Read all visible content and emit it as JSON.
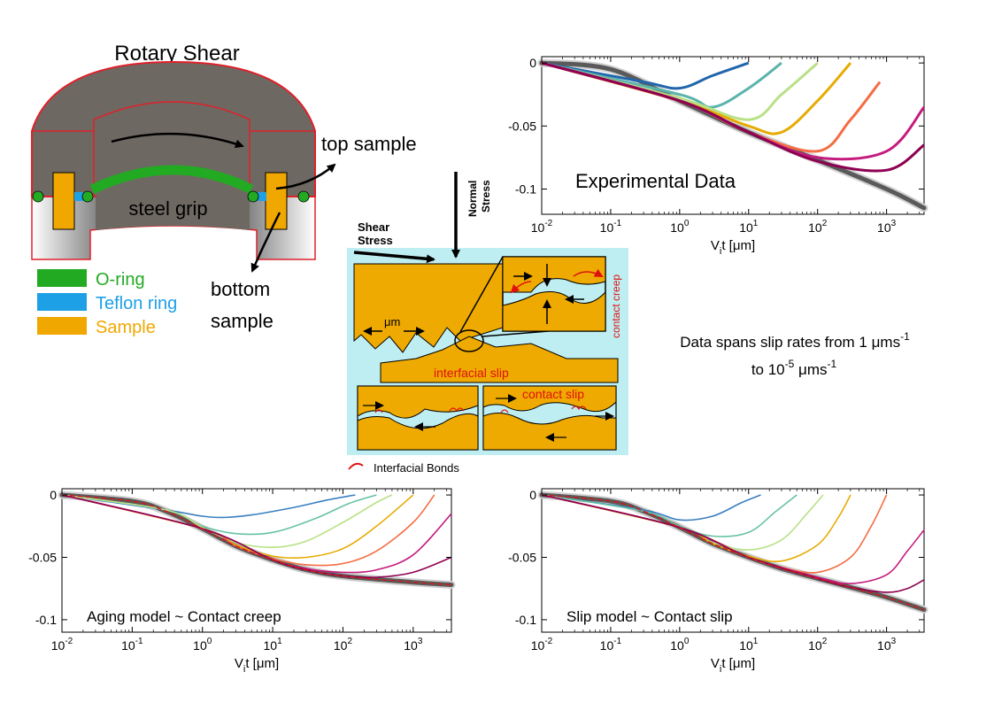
{
  "apparatus": {
    "title": "Rotary Shear",
    "center_label": "steel grip",
    "top_label": "top sample",
    "bottom_label_1": "bottom",
    "bottom_label_2": "sample",
    "legend": [
      {
        "label": "O-ring",
        "color": "#22aa22"
      },
      {
        "label": "Teflon ring",
        "color": "#1ea0e6"
      },
      {
        "label": "Sample",
        "color": "#f0a800"
      }
    ],
    "colors": {
      "body": "#6e6862",
      "outline": "#e0202a",
      "base": "#d9d9d9"
    }
  },
  "contact_diagram": {
    "normal_stress_1": "Normal",
    "normal_stress_2": "Stress",
    "shear_stress_1": "Shear",
    "shear_stress_2": "Stress",
    "scale_label": "μm",
    "contact_creep": "contact creep",
    "interfacial_slip": "interfacial slip",
    "contact_slip": "contact slip",
    "bonds_legend": "Interfacial Bonds",
    "colors": {
      "background": "#bfeef2",
      "sample": "#eeaa00",
      "annotation": "#e01010"
    }
  },
  "note": {
    "line1_prefix": "Data spans slip rates from 1 ",
    "line1_unit": "μms",
    "line1_exp": "-1",
    "line2_prefix": "to 10",
    "line2_exp": "-5",
    "line2_unit": " μms",
    "line2_exp2": "-1"
  },
  "chart_data": [
    {
      "id": "experimental",
      "type": "line",
      "annotation": "Experimental Data",
      "xlabel_base": "V",
      "xlabel_sub": "i",
      "xlabel_rest": "t [μm]",
      "ylabel": "",
      "xscale": "log",
      "xlim": [
        0.01,
        3500
      ],
      "ylim": [
        -0.12,
        0.005
      ],
      "xticks": [
        {
          "base": "10",
          "exp": "-2",
          "value": 0.01
        },
        {
          "base": "10",
          "exp": "-1",
          "value": 0.1
        },
        {
          "base": "10",
          "exp": "0",
          "value": 1
        },
        {
          "base": "10",
          "exp": "1",
          "value": 10
        },
        {
          "base": "10",
          "exp": "2",
          "value": 100
        },
        {
          "base": "10",
          "exp": "3",
          "value": 1000
        }
      ],
      "yticks": [
        {
          "label": "0",
          "value": 0
        },
        {
          "label": "-0.05",
          "value": -0.05
        },
        {
          "label": "-0.1",
          "value": -0.1
        }
      ],
      "envelope": {
        "x": [
          0.01,
          0.1,
          1,
          10,
          100,
          1000,
          3500
        ],
        "y": [
          0,
          -0.005,
          -0.03,
          -0.055,
          -0.077,
          -0.1,
          -0.115
        ],
        "color": "#5a5a5a"
      },
      "series": [
        {
          "color": "#2166ac",
          "x": [
            0.01,
            0.3,
            1,
            3,
            10
          ],
          "y": [
            0,
            -0.015,
            -0.02,
            -0.01,
            0
          ]
        },
        {
          "color": "#5ab4ac",
          "x": [
            0.01,
            1,
            3,
            10,
            30
          ],
          "y": [
            0,
            -0.025,
            -0.035,
            -0.02,
            0
          ]
        },
        {
          "color": "#b8e186",
          "x": [
            0.01,
            1,
            10,
            30,
            100
          ],
          "y": [
            0,
            -0.028,
            -0.045,
            -0.025,
            0
          ]
        },
        {
          "color": "#e6ab02",
          "x": [
            0.01,
            1,
            10,
            30,
            100,
            300
          ],
          "y": [
            0,
            -0.03,
            -0.05,
            -0.055,
            -0.03,
            0
          ]
        },
        {
          "color": "#f46d43",
          "x": [
            0.01,
            1,
            10,
            100,
            300,
            800
          ],
          "y": [
            0,
            -0.03,
            -0.055,
            -0.07,
            -0.045,
            -0.015
          ]
        },
        {
          "color": "#c51b7d",
          "x": [
            0.01,
            1,
            10,
            100,
            1000,
            3500
          ],
          "y": [
            0,
            -0.03,
            -0.055,
            -0.075,
            -0.07,
            -0.035
          ]
        },
        {
          "color": "#8e0152",
          "x": [
            0.01,
            1,
            10,
            100,
            1000,
            3500
          ],
          "y": [
            0,
            -0.03,
            -0.055,
            -0.078,
            -0.085,
            -0.065
          ]
        }
      ]
    },
    {
      "id": "aging",
      "type": "line",
      "annotation": "Aging model ~ Contact creep",
      "xlabel_base": "V",
      "xlabel_sub": "i",
      "xlabel_rest": "t [μm]",
      "ylabel": "",
      "xscale": "log",
      "xlim": [
        0.01,
        3500
      ],
      "ylim": [
        -0.11,
        0.005
      ],
      "xticks": [
        {
          "base": "10",
          "exp": "-2",
          "value": 0.01
        },
        {
          "base": "10",
          "exp": "-1",
          "value": 0.1
        },
        {
          "base": "10",
          "exp": "0",
          "value": 1
        },
        {
          "base": "10",
          "exp": "1",
          "value": 10
        },
        {
          "base": "10",
          "exp": "2",
          "value": 100
        },
        {
          "base": "10",
          "exp": "3",
          "value": 1000
        }
      ],
      "yticks": [
        {
          "label": "0",
          "value": 0
        },
        {
          "label": "-0.05",
          "value": -0.05
        },
        {
          "label": "-0.1",
          "value": -0.1
        }
      ],
      "envelope": {
        "x": [
          0.01,
          0.1,
          0.3,
          1,
          3,
          10,
          30,
          100,
          1000,
          3500
        ],
        "y": [
          0,
          -0.005,
          -0.013,
          -0.027,
          -0.041,
          -0.052,
          -0.06,
          -0.065,
          -0.07,
          -0.072
        ],
        "color": "#5a5a5a"
      },
      "series": [
        {
          "color": "#3a7fc1",
          "x": [
            0.01,
            0.3,
            1,
            2,
            5,
            20,
            60,
            150
          ],
          "y": [
            0,
            -0.012,
            -0.017,
            -0.018,
            -0.016,
            -0.01,
            -0.004,
            0
          ]
        },
        {
          "color": "#66c2a5",
          "x": [
            0.01,
            0.3,
            1,
            3,
            10,
            40,
            120,
            300
          ],
          "y": [
            0,
            -0.012,
            -0.025,
            -0.031,
            -0.03,
            -0.019,
            -0.007,
            0
          ]
        },
        {
          "color": "#b8e186",
          "x": [
            0.01,
            0.3,
            1,
            3,
            10,
            30,
            100,
            300,
            500
          ],
          "y": [
            0,
            -0.012,
            -0.026,
            -0.038,
            -0.042,
            -0.037,
            -0.022,
            -0.006,
            0
          ]
        },
        {
          "color": "#e6ab02",
          "x": [
            0.01,
            1,
            3,
            10,
            30,
            100,
            300,
            1000
          ],
          "y": [
            0,
            -0.027,
            -0.04,
            -0.049,
            -0.05,
            -0.043,
            -0.025,
            0
          ]
        },
        {
          "color": "#f46d43",
          "x": [
            0.01,
            1,
            3,
            10,
            30,
            100,
            300,
            1000,
            2000
          ],
          "y": [
            0,
            -0.027,
            -0.041,
            -0.051,
            -0.056,
            -0.055,
            -0.045,
            -0.022,
            0
          ]
        },
        {
          "color": "#c51b7d",
          "x": [
            0.01,
            1,
            10,
            30,
            100,
            300,
            1000,
            3500
          ],
          "y": [
            0,
            -0.027,
            -0.052,
            -0.059,
            -0.062,
            -0.06,
            -0.048,
            -0.015
          ]
        },
        {
          "color": "#8e0152",
          "x": [
            0.01,
            1,
            10,
            30,
            100,
            300,
            1000,
            3500
          ],
          "y": [
            0,
            -0.027,
            -0.052,
            -0.06,
            -0.065,
            -0.066,
            -0.062,
            -0.05
          ]
        }
      ]
    },
    {
      "id": "slip",
      "type": "line",
      "annotation": "Slip model ~ Contact slip",
      "xlabel_base": "V",
      "xlabel_sub": "i",
      "xlabel_rest": "t [μm]",
      "ylabel": "",
      "xscale": "log",
      "xlim": [
        0.01,
        3500
      ],
      "ylim": [
        -0.11,
        0.005
      ],
      "xticks": [
        {
          "base": "10",
          "exp": "-2",
          "value": 0.01
        },
        {
          "base": "10",
          "exp": "-1",
          "value": 0.1
        },
        {
          "base": "10",
          "exp": "0",
          "value": 1
        },
        {
          "base": "10",
          "exp": "1",
          "value": 10
        },
        {
          "base": "10",
          "exp": "2",
          "value": 100
        },
        {
          "base": "10",
          "exp": "3",
          "value": 1000
        }
      ],
      "yticks": [
        {
          "label": "0",
          "value": 0
        },
        {
          "label": "-0.05",
          "value": -0.05
        },
        {
          "label": "-0.1",
          "value": -0.1
        }
      ],
      "envelope": {
        "x": [
          0.01,
          0.1,
          0.3,
          1,
          3,
          10,
          30,
          100,
          300,
          1000,
          3500
        ],
        "y": [
          0,
          -0.005,
          -0.013,
          -0.026,
          -0.039,
          -0.05,
          -0.059,
          -0.067,
          -0.074,
          -0.082,
          -0.092
        ],
        "color": "#5a5a5a"
      },
      "series": [
        {
          "color": "#3a7fc1",
          "x": [
            0.01,
            0.3,
            1,
            3,
            8,
            15
          ],
          "y": [
            0,
            -0.012,
            -0.02,
            -0.017,
            -0.006,
            0
          ]
        },
        {
          "color": "#66c2a5",
          "x": [
            0.01,
            0.3,
            1,
            3,
            10,
            25,
            50
          ],
          "y": [
            0,
            -0.013,
            -0.025,
            -0.033,
            -0.03,
            -0.013,
            0
          ]
        },
        {
          "color": "#b8e186",
          "x": [
            0.01,
            1,
            3,
            10,
            30,
            70,
            120
          ],
          "y": [
            0,
            -0.026,
            -0.038,
            -0.044,
            -0.036,
            -0.015,
            0
          ]
        },
        {
          "color": "#e6ab02",
          "x": [
            0.01,
            1,
            3,
            10,
            30,
            100,
            200,
            300
          ],
          "y": [
            0,
            -0.026,
            -0.039,
            -0.049,
            -0.053,
            -0.04,
            -0.018,
            0
          ]
        },
        {
          "color": "#f46d43",
          "x": [
            0.01,
            1,
            10,
            30,
            100,
            300,
            600,
            1000
          ],
          "y": [
            0,
            -0.026,
            -0.05,
            -0.058,
            -0.062,
            -0.05,
            -0.025,
            0
          ]
        },
        {
          "color": "#c51b7d",
          "x": [
            0.01,
            1,
            10,
            100,
            300,
            1000,
            2000,
            3500
          ],
          "y": [
            0,
            -0.026,
            -0.05,
            -0.066,
            -0.071,
            -0.064,
            -0.045,
            -0.028
          ]
        },
        {
          "color": "#8e0152",
          "x": [
            0.01,
            1,
            10,
            100,
            300,
            1000,
            2000,
            3500
          ],
          "y": [
            0,
            -0.026,
            -0.05,
            -0.067,
            -0.074,
            -0.078,
            -0.075,
            -0.068
          ]
        }
      ]
    }
  ]
}
